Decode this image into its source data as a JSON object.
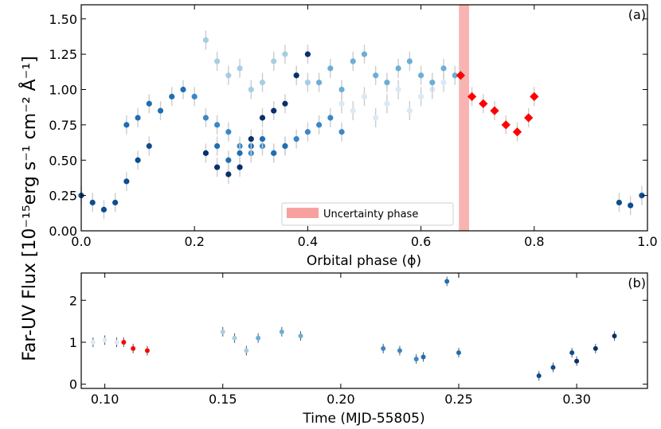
{
  "chart_data": [
    {
      "panel": "(a)",
      "type": "scatter",
      "xlabel": "Orbital phase (ϕ)",
      "ylabel": "Far-UV Flux [10⁻¹⁵erg s⁻¹ cm⁻² Å⁻¹]",
      "xlim": [
        0.0,
        1.0
      ],
      "ylim": [
        0.0,
        1.6
      ],
      "xticks": [
        "0.0",
        "0.2",
        "0.4",
        "0.6",
        "0.8",
        "1.0"
      ],
      "xtick_values": [
        0.0,
        0.2,
        0.4,
        0.6,
        0.8,
        1.0
      ],
      "yticks": [
        "0.00",
        "0.25",
        "0.50",
        "0.75",
        "1.00",
        "1.25",
        "1.50"
      ],
      "ytick_values": [
        0.0,
        0.25,
        0.5,
        0.75,
        1.0,
        1.25,
        1.5
      ],
      "uncertainty_band": {
        "x": [
          0.667,
          0.685
        ],
        "color": "#f8a0a0",
        "label": "Uncertainty phase"
      },
      "legend_position": "bottom-center",
      "grid": false,
      "series": [
        {
          "color": "#ffff00",
          "marker": "circle",
          "x": [],
          "y": []
        },
        {
          "color": "#dbe9f6",
          "marker": "circle",
          "x": [
            0.46,
            0.48,
            0.5,
            0.52,
            0.54,
            0.56,
            0.58,
            0.6,
            0.62,
            0.64
          ],
          "y": [
            0.9,
            0.85,
            0.95,
            0.8,
            0.9,
            1.0,
            0.85,
            0.95,
            1.0,
            1.05
          ]
        },
        {
          "color": "#a6cee3",
          "marker": "circle",
          "x": [
            0.22,
            0.24,
            0.26,
            0.28,
            0.3,
            0.32,
            0.34,
            0.36,
            0.38,
            0.4
          ],
          "y": [
            1.35,
            1.2,
            1.1,
            1.15,
            1.0,
            1.05,
            1.2,
            1.25,
            1.1,
            1.05
          ]
        },
        {
          "color": "#6baed6",
          "marker": "circle",
          "x": [
            0.42,
            0.44,
            0.46,
            0.48,
            0.5,
            0.52,
            0.54,
            0.56,
            0.58,
            0.6,
            0.62,
            0.64,
            0.66
          ],
          "y": [
            1.05,
            1.15,
            1.0,
            1.2,
            1.25,
            1.1,
            1.05,
            1.15,
            1.2,
            1.1,
            1.05,
            1.15,
            1.1
          ]
        },
        {
          "color": "#3a87c8",
          "marker": "circle",
          "x": [
            0.2,
            0.22,
            0.24,
            0.26,
            0.28,
            0.3,
            0.32,
            0.34,
            0.36,
            0.38,
            0.4,
            0.42,
            0.44,
            0.46
          ],
          "y": [
            0.95,
            0.8,
            0.75,
            0.7,
            0.6,
            0.55,
            0.6,
            0.55,
            0.6,
            0.65,
            0.7,
            0.75,
            0.8,
            0.7
          ]
        },
        {
          "color": "#1f6eb4",
          "marker": "circle",
          "x": [
            0.08,
            0.1,
            0.12,
            0.14,
            0.16,
            0.18,
            0.24,
            0.26,
            0.28,
            0.3,
            0.32,
            0.34,
            0.36
          ],
          "y": [
            0.75,
            0.8,
            0.9,
            0.85,
            0.95,
            1.0,
            0.6,
            0.5,
            0.55,
            0.6,
            0.65,
            0.55,
            0.6
          ]
        },
        {
          "color": "#0d4d92",
          "marker": "circle",
          "x": [
            0.0,
            0.02,
            0.04,
            0.06,
            0.08,
            0.1,
            0.12,
            0.95,
            0.97,
            0.99
          ],
          "y": [
            0.25,
            0.2,
            0.15,
            0.2,
            0.35,
            0.5,
            0.6,
            0.2,
            0.18,
            0.25
          ]
        },
        {
          "color": "#08306b",
          "marker": "circle",
          "x": [
            0.22,
            0.24,
            0.26,
            0.28,
            0.3,
            0.32,
            0.34,
            0.36,
            0.38,
            0.4
          ],
          "y": [
            0.55,
            0.45,
            0.4,
            0.45,
            0.65,
            0.8,
            0.85,
            0.9,
            1.1,
            1.25
          ]
        },
        {
          "color": "#ff0000",
          "marker": "diamond",
          "x": [
            0.67,
            0.69,
            0.71,
            0.73,
            0.75,
            0.77,
            0.79,
            0.8
          ],
          "y": [
            1.1,
            0.95,
            0.9,
            0.85,
            0.75,
            0.7,
            0.8,
            0.95
          ]
        }
      ]
    },
    {
      "panel": "(b)",
      "type": "scatter",
      "xlabel": "Time (MJD-55805)",
      "ylabel": "",
      "xlim": [
        0.09,
        0.33
      ],
      "ylim": [
        -0.1,
        2.65
      ],
      "xticks": [
        "0.10",
        "0.15",
        "0.20",
        "0.25",
        "0.30"
      ],
      "xtick_values": [
        0.1,
        0.15,
        0.2,
        0.25,
        0.3
      ],
      "yticks": [
        "0",
        "1",
        "2"
      ],
      "ytick_values": [
        0,
        1,
        2
      ],
      "grid": false,
      "series": [
        {
          "color": "#dbe9f6",
          "x": [
            0.095,
            0.1,
            0.105
          ],
          "y": [
            1.0,
            1.05,
            1.0
          ]
        },
        {
          "color": "#ff0000",
          "x": [
            0.108,
            0.112,
            0.118
          ],
          "y": [
            1.0,
            0.85,
            0.8
          ]
        },
        {
          "color": "#a6cee3",
          "x": [
            0.15,
            0.155,
            0.16
          ],
          "y": [
            1.25,
            1.1,
            0.8
          ]
        },
        {
          "color": "#6baed6",
          "x": [
            0.165,
            0.175,
            0.183
          ],
          "y": [
            1.1,
            1.25,
            1.15
          ]
        },
        {
          "color": "#3a87c8",
          "x": [
            0.218,
            0.225,
            0.232
          ],
          "y": [
            0.85,
            0.8,
            0.6
          ]
        },
        {
          "color": "#1f6eb4",
          "x": [
            0.235,
            0.245,
            0.25
          ],
          "y": [
            0.65,
            2.45,
            0.75
          ]
        },
        {
          "color": "#0d4d92",
          "x": [
            0.284,
            0.29,
            0.298
          ],
          "y": [
            0.2,
            0.4,
            0.75
          ]
        },
        {
          "color": "#08306b",
          "x": [
            0.3,
            0.308,
            0.316
          ],
          "y": [
            0.55,
            0.85,
            1.15
          ]
        }
      ]
    }
  ],
  "labels": {
    "panel_a_tag": "(a)",
    "panel_b_tag": "(b)"
  }
}
